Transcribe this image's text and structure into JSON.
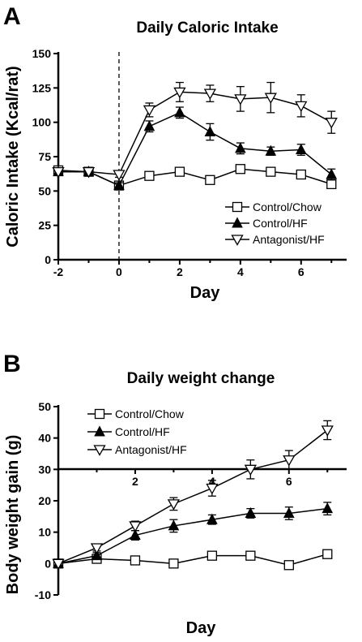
{
  "panels": [
    {
      "label": "A"
    },
    {
      "label": "B"
    }
  ],
  "chart_data": [
    {
      "type": "line",
      "title": "Daily Caloric Intake",
      "xlabel": "Day",
      "ylabel": "Caloric Intake (Kcal/rat)",
      "xlim": [
        -2,
        7.5
      ],
      "ylim": [
        0,
        150
      ],
      "x_ticks": [
        "-2",
        "0",
        "2",
        "4",
        "6"
      ],
      "y_ticks": [
        "0",
        "25",
        "50",
        "75",
        "100",
        "125",
        "150"
      ],
      "vline_at": 0,
      "legend": "right",
      "series": [
        {
          "name": "Control/Chow",
          "marker": "square",
          "x": [
            -2,
            -1,
            0,
            1,
            2,
            3,
            4,
            5,
            6,
            7
          ],
          "y": [
            65,
            64,
            54,
            61,
            64,
            58,
            66,
            64,
            62,
            55
          ],
          "err": [
            2,
            2,
            2,
            2,
            2,
            2,
            2,
            2,
            2,
            2
          ]
        },
        {
          "name": "Control/HF",
          "marker": "triangle",
          "x": [
            -2,
            -1,
            0,
            1,
            2,
            3,
            4,
            5,
            6,
            7
          ],
          "y": [
            64,
            64,
            54,
            97,
            107,
            93,
            81,
            79,
            80,
            62
          ],
          "err": [
            2,
            2,
            2,
            4,
            4,
            6,
            4,
            3,
            4,
            4
          ]
        },
        {
          "name": "Antagonist/HF",
          "marker": "inverted-triangle",
          "x": [
            -2,
            -1,
            0,
            1,
            2,
            3,
            4,
            5,
            6,
            7
          ],
          "y": [
            64,
            64,
            62,
            109,
            122,
            121,
            117,
            118,
            112,
            100
          ],
          "err": [
            2,
            2,
            2,
            5,
            7,
            6,
            9,
            11,
            8,
            8
          ]
        }
      ]
    },
    {
      "type": "line",
      "title": "Daily weight change",
      "xlabel": "Day",
      "ylabel": "Body weight gain (g)",
      "xlim": [
        0,
        7.5
      ],
      "ylim": [
        -10,
        50
      ],
      "x_ticks": [
        "2",
        "4",
        "6"
      ],
      "y_ticks": [
        "-10",
        "0",
        "10",
        "20",
        "30",
        "40",
        "50"
      ],
      "legend": "top-left",
      "series": [
        {
          "name": "Control/Chow",
          "marker": "square",
          "x": [
            0,
            1,
            2,
            3,
            4,
            5,
            6,
            7
          ],
          "y": [
            0,
            1.5,
            1,
            0,
            2.5,
            2.5,
            -0.5,
            3
          ],
          "err": [
            0,
            1,
            0,
            0,
            1,
            1,
            1,
            1
          ]
        },
        {
          "name": "Control/HF",
          "marker": "triangle",
          "x": [
            0,
            1,
            2,
            3,
            4,
            5,
            6,
            7
          ],
          "y": [
            0,
            2.5,
            9,
            12,
            14,
            16,
            16,
            17.5
          ],
          "err": [
            0,
            1,
            1.5,
            2,
            1.5,
            1.5,
            2,
            2
          ]
        },
        {
          "name": "Antagonist/HF",
          "marker": "inverted-triangle",
          "x": [
            0,
            1,
            2,
            3,
            4,
            5,
            6,
            7
          ],
          "y": [
            0,
            5,
            12,
            19,
            24,
            30,
            33,
            42.5
          ],
          "err": [
            0,
            1,
            1.5,
            2,
            2.5,
            3,
            3,
            3
          ]
        }
      ]
    }
  ]
}
